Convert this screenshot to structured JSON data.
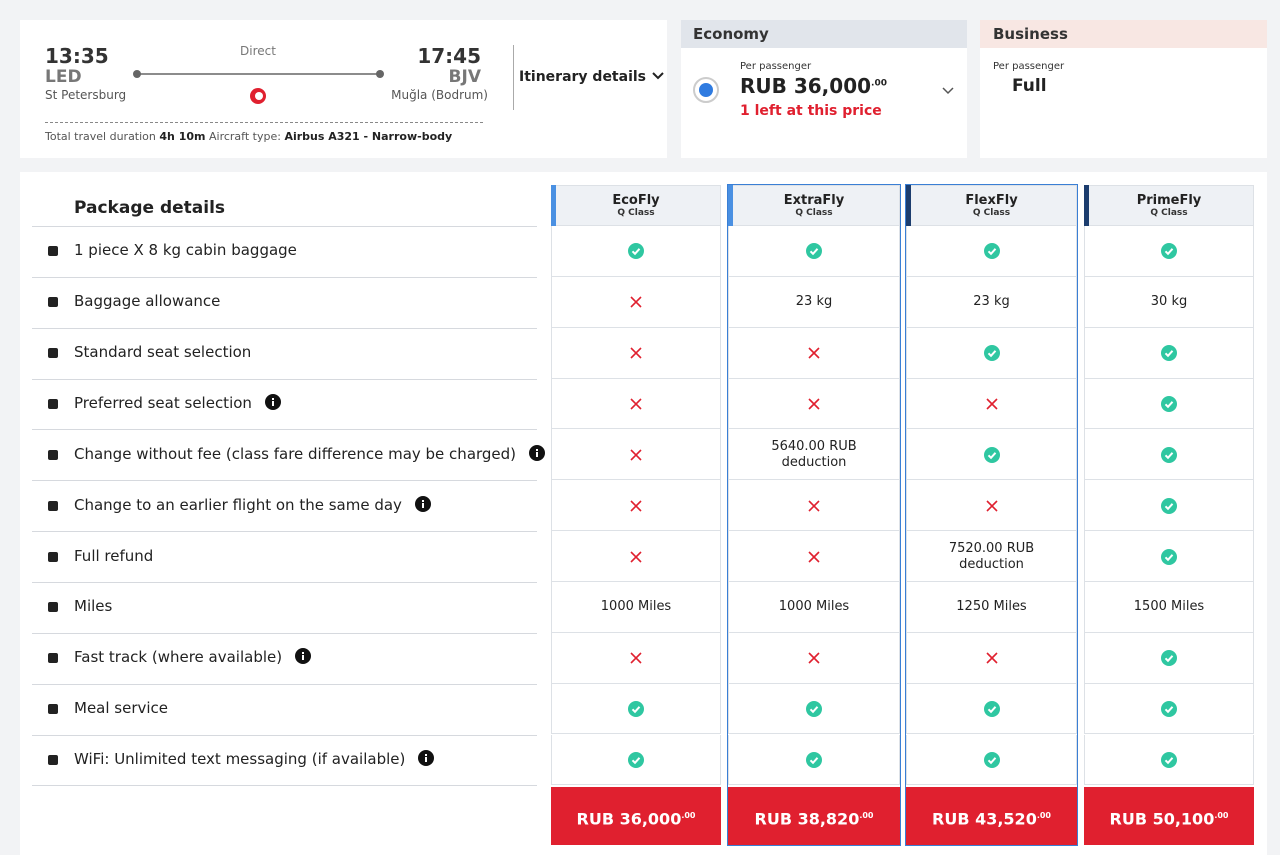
{
  "flight": {
    "depart_time": "13:35",
    "depart_code": "LED",
    "depart_city": "St Petersburg",
    "stop": "Direct",
    "arrive_time": "17:45",
    "arrive_code": "BJV",
    "arrive_city": "Muğla (Bodrum)",
    "itinerary": "Itinerary details",
    "duration_label": "Total travel duration",
    "duration": "4h 10m",
    "aircraft_label": "Aircraft type:",
    "aircraft": "Airbus A321 - Narrow-body"
  },
  "cabins": [
    {
      "name": "Economy",
      "per": "Per passenger",
      "price": "RUB 36,000",
      "cents": ".00",
      "note": "1 left at this price"
    },
    {
      "name": "Business",
      "per": "Per passenger",
      "price": "Full"
    }
  ],
  "packages": {
    "title": "Package details",
    "columns": [
      {
        "name": "EcoFly",
        "class": "Q Class",
        "price": "RUB 36,000",
        "cents": ".00"
      },
      {
        "name": "ExtraFly",
        "class": "Q Class",
        "price": "RUB 38,820",
        "cents": ".00"
      },
      {
        "name": "FlexFly",
        "class": "Q Class",
        "price": "RUB 43,520",
        "cents": ".00"
      },
      {
        "name": "PrimeFly",
        "class": "Q Class",
        "price": "RUB 50,100",
        "cents": ".00"
      }
    ],
    "rows": [
      {
        "feature": "1 piece X 8 kg cabin baggage",
        "info": false,
        "cells": [
          true,
          true,
          true,
          true
        ]
      },
      {
        "feature": "Baggage allowance",
        "info": false,
        "cells": [
          false,
          "23 kg",
          "23 kg",
          "30 kg"
        ]
      },
      {
        "feature": "Standard seat selection",
        "info": false,
        "cells": [
          false,
          false,
          true,
          true
        ]
      },
      {
        "feature": "Preferred seat selection",
        "info": true,
        "cells": [
          false,
          false,
          false,
          true
        ]
      },
      {
        "feature": "Change without fee (class fare difference may be charged)",
        "info": true,
        "cells": [
          false,
          "5640.00 RUB deduction",
          true,
          true
        ]
      },
      {
        "feature": "Change to an earlier flight on the same day",
        "info": true,
        "cells": [
          false,
          false,
          false,
          true
        ]
      },
      {
        "feature": "Full refund",
        "info": false,
        "cells": [
          false,
          false,
          "7520.00 RUB deduction",
          true
        ]
      },
      {
        "feature": "Miles",
        "info": false,
        "cells": [
          "1000 Miles",
          "1000 Miles",
          "1250 Miles",
          "1500 Miles"
        ]
      },
      {
        "feature": "Fast track (where available)",
        "info": true,
        "cells": [
          false,
          false,
          false,
          true
        ]
      },
      {
        "feature": "Meal service",
        "info": false,
        "cells": [
          true,
          true,
          true,
          true
        ]
      },
      {
        "feature": "WiFi: Unlimited text messaging (if available)",
        "info": true,
        "cells": [
          true,
          true,
          true,
          true
        ]
      }
    ]
  }
}
